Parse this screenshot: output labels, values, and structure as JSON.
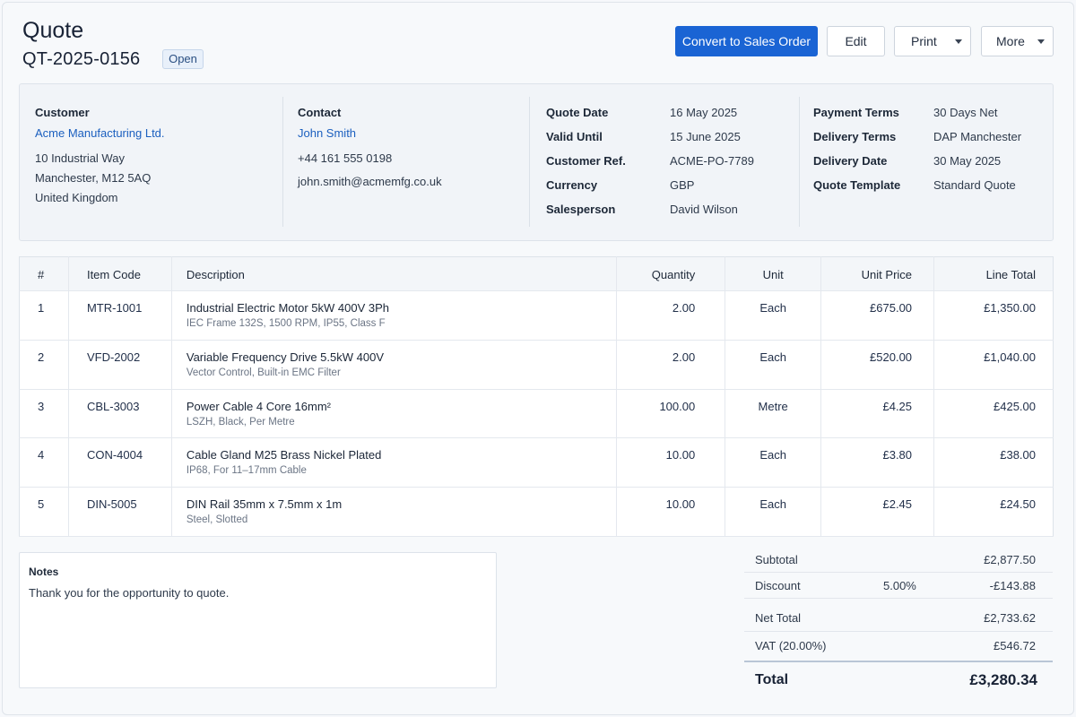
{
  "header": {
    "title": "Quote",
    "quote_number": "QT-2025-0156",
    "status": "Open"
  },
  "toolbar": {
    "convert_label": "Convert to Sales Order",
    "edit_label": "Edit",
    "print_label": "Print",
    "more_label": "More"
  },
  "customer": {
    "heading": "Customer",
    "name": "Acme Manufacturing Ltd.",
    "address_line1": "10 Industrial Way",
    "address_line2": "Manchester, M12 5AQ",
    "address_line3": "United Kingdom"
  },
  "contact": {
    "heading": "Contact",
    "name": "John Smith",
    "phone": "+44 161 555 0198",
    "email": "john.smith@acmemfg.co.uk"
  },
  "details": {
    "quote_date_label": "Quote Date",
    "quote_date": "16 May 2025",
    "valid_until_label": "Valid Until",
    "valid_until": "15 June 2025",
    "customer_ref_label": "Customer Ref.",
    "customer_ref": "ACME-PO-7789",
    "currency_label": "Currency",
    "currency": "GBP",
    "salesperson_label": "Salesperson",
    "salesperson": "David Wilson"
  },
  "terms": {
    "payment_terms_label": "Payment Terms",
    "payment_terms": "30 Days Net",
    "delivery_terms_label": "Delivery Terms",
    "delivery_terms": "DAP Manchester",
    "delivery_date_label": "Delivery Date",
    "delivery_date": "30 May 2025",
    "template_label": "Quote Template",
    "template": "Standard Quote"
  },
  "table": {
    "columns": [
      "#",
      "Item Code",
      "Description",
      "Quantity",
      "Unit",
      "Unit Price",
      "Line Total"
    ],
    "rows": [
      {
        "num": "1",
        "code": "MTR-1001",
        "desc": "Industrial Electric Motor 5kW 400V 3Ph",
        "sub": "IEC Frame 132S, 1500 RPM, IP55, Class F",
        "qty": "2.00",
        "unit": "Each",
        "price": "£675.00",
        "total": "£1,350.00"
      },
      {
        "num": "2",
        "code": "VFD-2002",
        "desc": "Variable Frequency Drive 5.5kW 400V",
        "sub": "Vector Control, Built-in EMC Filter",
        "qty": "2.00",
        "unit": "Each",
        "price": "£520.00",
        "total": "£1,040.00"
      },
      {
        "num": "3",
        "code": "CBL-3003",
        "desc": "Power Cable 4 Core 16mm²",
        "sub": "LSZH, Black, Per Metre",
        "qty": "100.00",
        "unit": "Metre",
        "price": "£4.25",
        "total": "£425.00"
      },
      {
        "num": "4",
        "code": "CON-4004",
        "desc": "Cable Gland M25 Brass Nickel Plated",
        "sub": "IP68, For 11–17mm Cable",
        "qty": "10.00",
        "unit": "Each",
        "price": "£3.80",
        "total": "£38.00"
      },
      {
        "num": "5",
        "code": "DIN-5005",
        "desc": "DIN Rail 35mm x 7.5mm x 1m",
        "sub": "Steel, Slotted",
        "qty": "10.00",
        "unit": "Each",
        "price": "£2.45",
        "total": "£24.50"
      }
    ]
  },
  "notes": {
    "label": "Notes",
    "text": "Thank you for the opportunity to quote."
  },
  "totals": {
    "subtotal_label": "Subtotal",
    "subtotal": "£2,877.50",
    "discount_label": "Discount",
    "discount_pct": "5.00%",
    "discount": "-£143.88",
    "net_label": "Net Total",
    "net": "£2,733.62",
    "vat_label": "VAT (20.00%)",
    "vat": "£546.72",
    "total_label": "Total",
    "total": "£3,280.34"
  },
  "colors": {
    "primary": "#1a64d4",
    "link": "#1b5fbf",
    "badge_bg": "#e8f0fa"
  }
}
